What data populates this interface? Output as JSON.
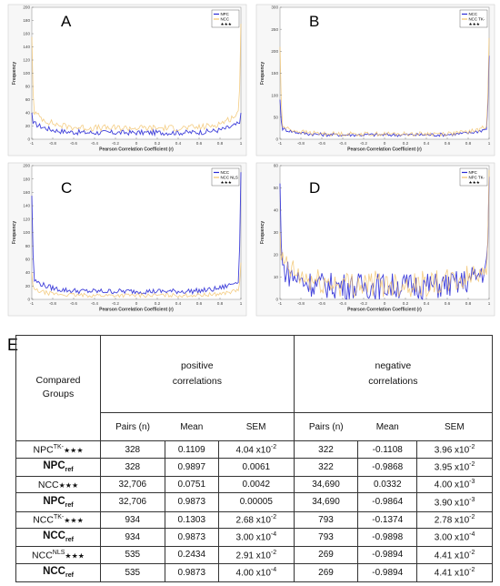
{
  "chart_data": [
    {
      "panel": "A",
      "type": "line",
      "xlabel": "Pearson Correlation Coefficient (r)",
      "ylabel": "Frequency",
      "xlim": [
        -1,
        1
      ],
      "ylim": [
        0,
        200
      ],
      "xticks": [
        "-1",
        "-0.8",
        "-0.6",
        "-0.4",
        "-0.2",
        "0",
        "0.2",
        "0.4",
        "0.6",
        "0.8",
        "1"
      ],
      "yticks": [
        "0",
        "20",
        "40",
        "60",
        "80",
        "100",
        "120",
        "140",
        "160",
        "180",
        "200"
      ],
      "legend": [
        "NPC",
        "NCC",
        "★★★"
      ],
      "series": [
        {
          "name": "NPC",
          "color": "#2b2bd6",
          "edge_left": 40,
          "edge_right": 40,
          "floor": 10,
          "noise": 4
        },
        {
          "name": "NCC",
          "color": "#f2c46e",
          "edge_left": 155,
          "edge_right": 175,
          "floor": 17,
          "noise": 5
        }
      ]
    },
    {
      "panel": "B",
      "type": "line",
      "xlabel": "Pearson Correlation Coefficient (r)",
      "ylabel": "Frequency",
      "xlim": [
        -1,
        1
      ],
      "ylim": [
        0,
        300
      ],
      "xticks": [
        "-1",
        "-0.8",
        "-0.6",
        "-0.4",
        "-0.2",
        "0",
        "0.2",
        "0.4",
        "0.6",
        "0.8",
        "1"
      ],
      "yticks": [
        "0",
        "50",
        "100",
        "150",
        "200",
        "250",
        "300"
      ],
      "legend": [
        "NCC",
        "NCC TK-",
        "★★★"
      ],
      "series": [
        {
          "name": "NCC",
          "color": "#2b2bd6",
          "edge_left": 90,
          "edge_right": 190,
          "floor": 10,
          "noise": 4
        },
        {
          "name": "NCC TK-",
          "color": "#f2c46e",
          "edge_left": 210,
          "edge_right": 230,
          "floor": 12,
          "noise": 5
        }
      ]
    },
    {
      "panel": "C",
      "type": "line",
      "xlabel": "Pearson Correlation Coefficient (r)",
      "ylabel": "Frequency",
      "xlim": [
        -1,
        1
      ],
      "ylim": [
        0,
        200
      ],
      "xticks": [
        "-1",
        "-0.8",
        "-0.6",
        "-0.4",
        "-0.2",
        "0",
        "0.2",
        "0.4",
        "0.6",
        "0.8",
        "1"
      ],
      "yticks": [
        "0",
        "20",
        "40",
        "60",
        "80",
        "100",
        "120",
        "140",
        "160",
        "180",
        "200"
      ],
      "legend": [
        "NCC",
        "NCC NLS",
        "★★★"
      ],
      "series": [
        {
          "name": "NCC",
          "color": "#2b2bd6",
          "edge_left": 155,
          "edge_right": 190,
          "floor": 12,
          "noise": 4
        },
        {
          "name": "NCC NLS",
          "color": "#f2c46e",
          "edge_left": 40,
          "edge_right": 55,
          "floor": 6,
          "noise": 3
        }
      ]
    },
    {
      "panel": "D",
      "type": "line",
      "xlabel": "Pearson Correlation Coefficient (r)",
      "ylabel": "Frequency",
      "xlim": [
        -1,
        1
      ],
      "ylim": [
        0,
        60
      ],
      "xticks": [
        "-1",
        "-0.8",
        "-0.6",
        "-0.4",
        "-0.2",
        "0",
        "0.2",
        "0.4",
        "0.6",
        "0.8",
        "1"
      ],
      "yticks": [
        "0",
        "10",
        "20",
        "30",
        "40",
        "50",
        "60"
      ],
      "legend": [
        "NPC",
        "NPC TK-",
        "★★★"
      ],
      "series": [
        {
          "name": "NPC",
          "color": "#2b2bd6",
          "edge_left": 52,
          "edge_right": 55,
          "floor": 6,
          "noise": 6
        },
        {
          "name": "NPC TK-",
          "color": "#f2c46e",
          "edge_left": 30,
          "edge_right": 58,
          "floor": 7,
          "noise": 6
        }
      ]
    }
  ],
  "table": {
    "label": "E",
    "header_group": "Compared Groups",
    "header_positive_1": "positive",
    "header_positive_2": "correlations",
    "header_negative_1": "negative",
    "header_negative_2": "correlations",
    "col_pairs": "Pairs (n)",
    "col_mean": "Mean",
    "col_sem": "SEM",
    "rows": [
      {
        "g": "NPC",
        "sup": "TK-",
        "stars": "★★★",
        "bold": false,
        "pp": "328",
        "pm": "0.1109",
        "ps": "4.04 x10",
        "pe": "-2",
        "np": "322",
        "nm": "-0.1108",
        "ns": "3.96 x10",
        "ne": "-2"
      },
      {
        "g": "NPC",
        "sub": "ref",
        "bold": true,
        "pp": "328",
        "pm": "0.9897",
        "ps": "0.0061",
        "pe": "",
        "np": "322",
        "nm": "-0.9868",
        "ns": "3.95 x10",
        "ne": "-2"
      },
      {
        "g": "NCC",
        "stars": "★★★",
        "bold": false,
        "pp": "32,706",
        "pm": "0.0751",
        "ps": "0.0042",
        "pe": "",
        "np": "34,690",
        "nm": "0.0332",
        "ns": "4.00 x10",
        "ne": "-3"
      },
      {
        "g": "NPC",
        "sub": "ref",
        "bold": true,
        "pp": "32,706",
        "pm": "0.9873",
        "ps": "0.00005",
        "pe": "",
        "np": "34,690",
        "nm": "-0.9864",
        "ns": "3.90 x10",
        "ne": "-3"
      },
      {
        "g": "NCC",
        "sup": "TK-",
        "stars": "★★★",
        "bold": false,
        "pp": "934",
        "pm": "0.1303",
        "ps": "2.68 x10",
        "pe": "-2",
        "np": "793",
        "nm": "-0.1374",
        "ns": "2.78 x10",
        "ne": "-2"
      },
      {
        "g": "NCC",
        "sub": "ref",
        "bold": true,
        "pp": "934",
        "pm": "0.9873",
        "ps": "3.00 x10",
        "pe": "-4",
        "np": "793",
        "nm": "-0.9898",
        "ns": "3.00 x10",
        "ne": "-4"
      },
      {
        "g": "NCC",
        "sup": "NLS",
        "stars": "★★★",
        "bold": false,
        "pp": "535",
        "pm": "0.2434",
        "ps": "2.91 x10",
        "pe": "-2",
        "np": "269",
        "nm": "-0.9894",
        "ns": "4.41 x10",
        "ne": "-2"
      },
      {
        "g": "NCC",
        "sub": "ref",
        "bold": true,
        "pp": "535",
        "pm": "0.9873",
        "ps": "4.00 x10",
        "pe": "-4",
        "np": "269",
        "nm": "-0.9894",
        "ns": "4.41 x10",
        "ne": "-2"
      }
    ]
  }
}
